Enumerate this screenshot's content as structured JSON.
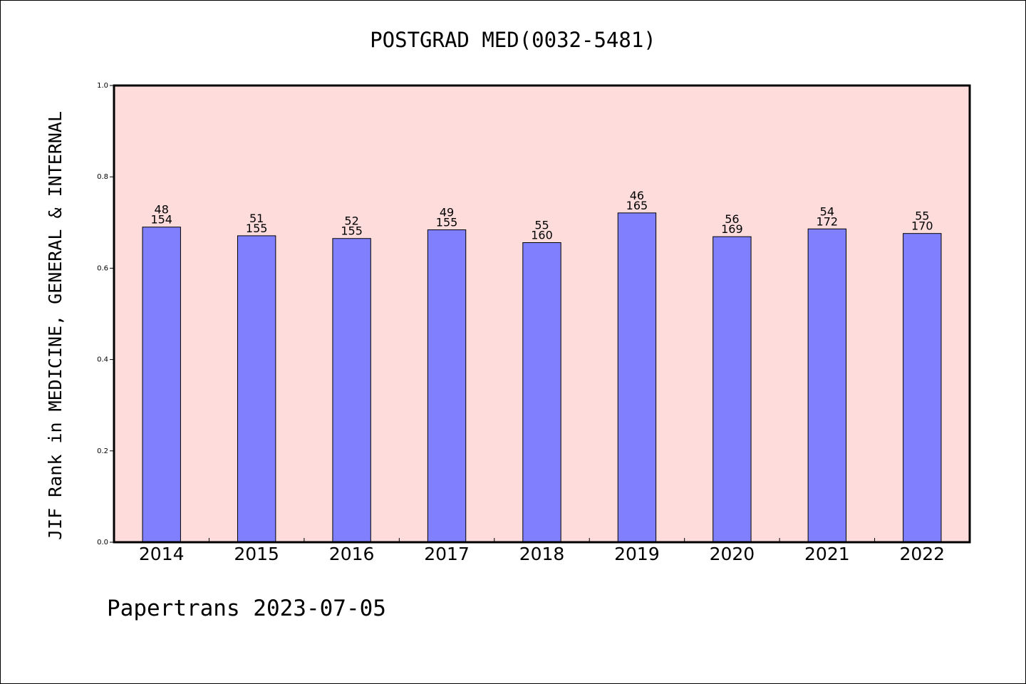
{
  "chart_data": {
    "type": "bar",
    "title": "POSTGRAD MED(0032-5481)",
    "ylabel": "JIF Rank in MEDICINE, GENERAL & INTERNAL",
    "xlabel": "",
    "ylim": [
      0.0,
      1.0
    ],
    "yticks": [
      "0.0",
      "0.2",
      "0.4",
      "0.6",
      "0.8",
      "1.0"
    ],
    "categories": [
      "2014",
      "2015",
      "2016",
      "2017",
      "2018",
      "2019",
      "2020",
      "2021",
      "2022"
    ],
    "values": [
      0.69,
      0.671,
      0.665,
      0.684,
      0.656,
      0.721,
      0.669,
      0.686,
      0.676
    ],
    "rank": [
      "48",
      "51",
      "52",
      "49",
      "55",
      "46",
      "56",
      "54",
      "55"
    ],
    "total": [
      "154",
      "155",
      "155",
      "155",
      "160",
      "165",
      "169",
      "172",
      "170"
    ],
    "grid": false,
    "colors": {
      "bar": "#8080ff",
      "plot_bg": "#ffdcdc",
      "axis": "#000000"
    }
  },
  "footer": "Papertrans 2023-07-05"
}
